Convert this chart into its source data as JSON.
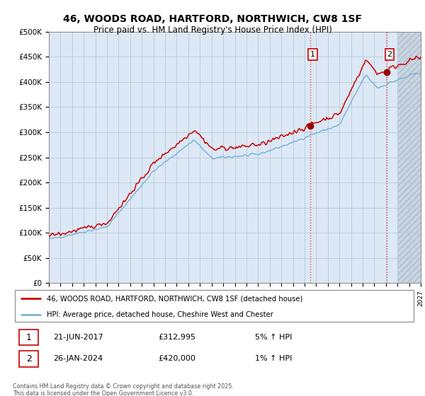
{
  "title1": "46, WOODS ROAD, HARTFORD, NORTHWICH, CW8 1SF",
  "title2": "Price paid vs. HM Land Registry's House Price Index (HPI)",
  "ylabel_ticks": [
    "£0",
    "£50K",
    "£100K",
    "£150K",
    "£200K",
    "£250K",
    "£300K",
    "£350K",
    "£400K",
    "£450K",
    "£500K"
  ],
  "ytick_vals": [
    0,
    50000,
    100000,
    150000,
    200000,
    250000,
    300000,
    350000,
    400000,
    450000,
    500000
  ],
  "ylim": [
    0,
    500000
  ],
  "xlim_start": 1995,
  "xlim_end": 2027,
  "sale1_year": 2017.47,
  "sale1_price": 312995,
  "sale2_year": 2024.07,
  "sale2_price": 420000,
  "red_line_color": "#cc0000",
  "blue_line_color": "#7fb4d8",
  "sale_marker_color": "#990000",
  "vline_color": "#ee4444",
  "legend1": "46, WOODS ROAD, HARTFORD, NORTHWICH, CW8 1SF (detached house)",
  "legend2": "HPI: Average price, detached house, Cheshire West and Chester",
  "annotation1_date": "21-JUN-2017",
  "annotation1_price": "£312,995",
  "annotation1_hpi": "5% ↑ HPI",
  "annotation2_date": "26-JAN-2024",
  "annotation2_price": "£420,000",
  "annotation2_hpi": "1% ↑ HPI",
  "footnote": "Contains HM Land Registry data © Crown copyright and database right 2025.\nThis data is licensed under the Open Government Licence v3.0.",
  "plot_bg_color": "#dce8f5",
  "hatch_start": 2025.0,
  "hatch_bg_color": "#c8d4e0"
}
